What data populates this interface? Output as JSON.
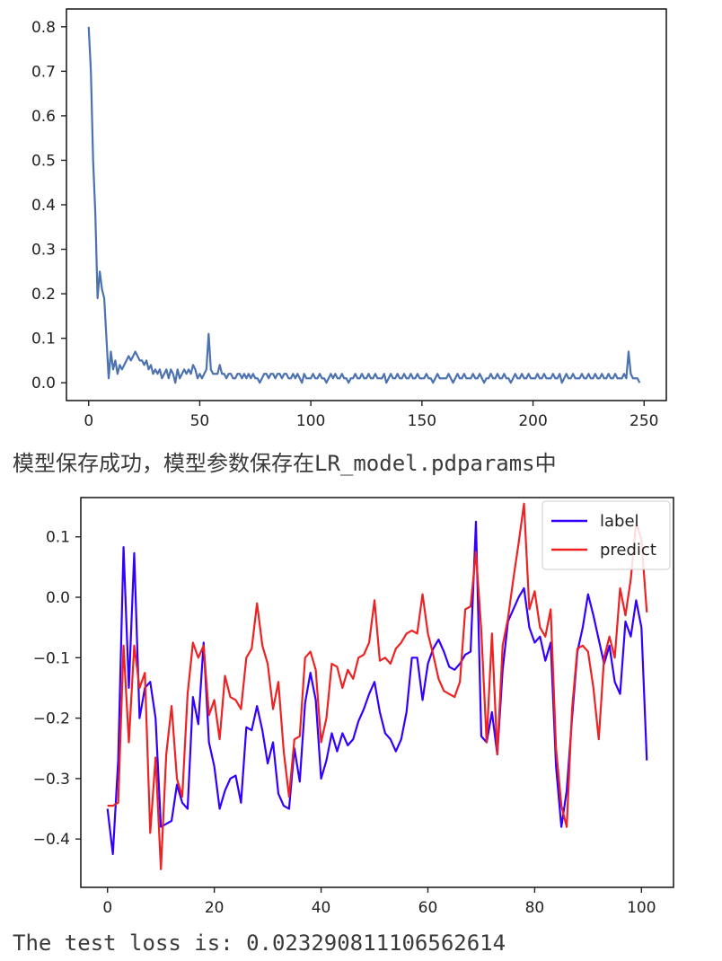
{
  "output": {
    "save_message": "模型保存成功，模型参数保存在LR_model.pdparams中",
    "test_loss": "The test loss is: 0.023290811106562614"
  },
  "chart_data": [
    {
      "type": "line",
      "title": "",
      "xlabel": "",
      "ylabel": "",
      "xlim": [
        -10,
        260
      ],
      "ylim": [
        -0.04,
        0.84
      ],
      "xticks": [
        0,
        50,
        100,
        150,
        200,
        250
      ],
      "yticks": [
        0.0,
        0.1,
        0.2,
        0.3,
        0.4,
        0.5,
        0.6,
        0.7,
        0.8
      ],
      "ytick_labels": [
        "0.0",
        "0.1",
        "0.2",
        "0.3",
        "0.4",
        "0.5",
        "0.6",
        "0.7",
        "0.8"
      ],
      "grid": false,
      "colors": {
        "line": "#4c72b0"
      },
      "series": [
        {
          "values": [
            0.8,
            0.7,
            0.5,
            0.38,
            0.19,
            0.25,
            0.21,
            0.19,
            0.1,
            0.01,
            0.07,
            0.03,
            0.05,
            0.02,
            0.04,
            0.03,
            0.04,
            0.05,
            0.06,
            0.05,
            0.06,
            0.07,
            0.06,
            0.05,
            0.05,
            0.04,
            0.05,
            0.03,
            0.04,
            0.02,
            0.03,
            0.02,
            0.03,
            0.01,
            0.02,
            0.03,
            0.01,
            0.03,
            0.02,
            0.0,
            0.03,
            0.01,
            0.02,
            0.03,
            0.02,
            0.03,
            0.02,
            0.04,
            0.03,
            0.01,
            0.02,
            0.01,
            0.02,
            0.03,
            0.11,
            0.03,
            0.02,
            0.02,
            0.02,
            0.04,
            0.02,
            0.02,
            0.01,
            0.02,
            0.02,
            0.01,
            0.01,
            0.02,
            0.02,
            0.01,
            0.02,
            0.01,
            0.02,
            0.01,
            0.02,
            0.01,
            0.01,
            0.0,
            0.01,
            0.02,
            0.02,
            0.01,
            0.02,
            0.02,
            0.01,
            0.02,
            0.02,
            0.01,
            0.02,
            0.02,
            0.01,
            0.01,
            0.02,
            0.01,
            0.02,
            0.01,
            0.0,
            0.02,
            0.01,
            0.01,
            0.01,
            0.02,
            0.01,
            0.01,
            0.02,
            0.01,
            0.01,
            0.0,
            0.01,
            0.02,
            0.01,
            0.02,
            0.01,
            0.01,
            0.02,
            0.01,
            0.01,
            0.0,
            0.01,
            0.01,
            0.02,
            0.01,
            0.01,
            0.02,
            0.01,
            0.01,
            0.02,
            0.01,
            0.01,
            0.02,
            0.01,
            0.01,
            0.01,
            0.02,
            0.0,
            0.01,
            0.02,
            0.01,
            0.01,
            0.02,
            0.01,
            0.01,
            0.02,
            0.01,
            0.01,
            0.02,
            0.01,
            0.01,
            0.02,
            0.01,
            0.01,
            0.01,
            0.02,
            0.01,
            0.01,
            0.0,
            0.01,
            0.02,
            0.01,
            0.01,
            0.01,
            0.01,
            0.02,
            0.01,
            0.0,
            0.01,
            0.02,
            0.01,
            0.01,
            0.02,
            0.01,
            0.01,
            0.01,
            0.02,
            0.01,
            0.01,
            0.02,
            0.01,
            0.0,
            0.01,
            0.01,
            0.02,
            0.01,
            0.01,
            0.02,
            0.01,
            0.01,
            0.02,
            0.01,
            0.01,
            0.0,
            0.01,
            0.02,
            0.01,
            0.01,
            0.02,
            0.01,
            0.01,
            0.02,
            0.01,
            0.01,
            0.01,
            0.02,
            0.01,
            0.01,
            0.02,
            0.01,
            0.01,
            0.01,
            0.02,
            0.01,
            0.01,
            0.02,
            0.0,
            0.01,
            0.02,
            0.01,
            0.01,
            0.02,
            0.01,
            0.01,
            0.01,
            0.02,
            0.01,
            0.01,
            0.02,
            0.01,
            0.01,
            0.02,
            0.01,
            0.01,
            0.02,
            0.01,
            0.01,
            0.02,
            0.01,
            0.01,
            0.02,
            0.01,
            0.01,
            0.01,
            0.02,
            0.01,
            0.07,
            0.02,
            0.01,
            0.01,
            0.01,
            0.0
          ]
        }
      ]
    },
    {
      "type": "line",
      "title": "",
      "xlabel": "",
      "ylabel": "",
      "xlim": [
        -5,
        106
      ],
      "ylim": [
        -0.48,
        0.165
      ],
      "xticks": [
        0,
        20,
        40,
        60,
        80,
        100
      ],
      "yticks": [
        -0.4,
        -0.3,
        -0.2,
        -0.1,
        0.0,
        0.1
      ],
      "ytick_labels": [
        "−0.4",
        "−0.3",
        "−0.2",
        "−0.1",
        "0.0",
        "0.1"
      ],
      "grid": false,
      "legend": {
        "placement": "top-right"
      },
      "series": [
        {
          "name": "label",
          "color": "#3300ff",
          "values": [
            -0.35,
            -0.425,
            -0.27,
            0.083,
            -0.15,
            0.073,
            -0.2,
            -0.15,
            -0.14,
            -0.2,
            -0.38,
            -0.375,
            -0.37,
            -0.31,
            -0.34,
            -0.35,
            -0.165,
            -0.21,
            -0.075,
            -0.24,
            -0.28,
            -0.35,
            -0.32,
            -0.3,
            -0.295,
            -0.34,
            -0.215,
            -0.22,
            -0.18,
            -0.22,
            -0.275,
            -0.24,
            -0.325,
            -0.345,
            -0.35,
            -0.25,
            -0.305,
            -0.175,
            -0.125,
            -0.17,
            -0.3,
            -0.27,
            -0.225,
            -0.255,
            -0.225,
            -0.245,
            -0.235,
            -0.205,
            -0.185,
            -0.16,
            -0.14,
            -0.19,
            -0.225,
            -0.235,
            -0.255,
            -0.235,
            -0.19,
            -0.1,
            -0.1,
            -0.17,
            -0.11,
            -0.085,
            -0.07,
            -0.09,
            -0.115,
            -0.12,
            -0.11,
            -0.095,
            -0.09,
            0.125,
            -0.23,
            -0.24,
            -0.19,
            -0.26,
            -0.12,
            -0.04,
            -0.02,
            0.0,
            0.015,
            -0.05,
            -0.075,
            -0.065,
            -0.105,
            -0.075,
            -0.28,
            -0.38,
            -0.32,
            -0.2,
            -0.09,
            -0.05,
            0.005,
            -0.03,
            -0.07,
            -0.11,
            -0.08,
            -0.14,
            -0.16,
            -0.04,
            -0.065,
            -0.005,
            -0.05,
            -0.27
          ]
        },
        {
          "name": "predict",
          "color": "#ee2222",
          "values": [
            -0.345,
            -0.345,
            -0.34,
            -0.08,
            -0.24,
            -0.08,
            -0.15,
            -0.125,
            -0.39,
            -0.265,
            -0.45,
            -0.26,
            -0.18,
            -0.3,
            -0.33,
            -0.16,
            -0.075,
            -0.1,
            -0.08,
            -0.195,
            -0.17,
            -0.235,
            -0.13,
            -0.165,
            -0.17,
            -0.185,
            -0.1,
            -0.085,
            -0.01,
            -0.08,
            -0.11,
            -0.185,
            -0.14,
            -0.255,
            -0.33,
            -0.235,
            -0.23,
            -0.1,
            -0.09,
            -0.12,
            -0.24,
            -0.2,
            -0.11,
            -0.115,
            -0.15,
            -0.12,
            -0.135,
            -0.1,
            -0.095,
            -0.075,
            -0.005,
            -0.105,
            -0.1,
            -0.11,
            -0.085,
            -0.075,
            -0.06,
            -0.055,
            -0.06,
            0.005,
            -0.06,
            -0.095,
            -0.135,
            -0.155,
            -0.16,
            -0.165,
            -0.14,
            -0.02,
            -0.015,
            0.075,
            -0.055,
            -0.24,
            -0.06,
            -0.26,
            -0.08,
            -0.035,
            0.03,
            0.09,
            0.155,
            -0.02,
            0.01,
            -0.05,
            -0.065,
            -0.02,
            -0.25,
            -0.345,
            -0.38,
            -0.185,
            -0.085,
            -0.08,
            -0.09,
            -0.15,
            -0.235,
            -0.1,
            -0.065,
            -0.1,
            0.015,
            -0.03,
            0.03,
            0.125,
            0.095,
            -0.025
          ]
        }
      ]
    }
  ]
}
